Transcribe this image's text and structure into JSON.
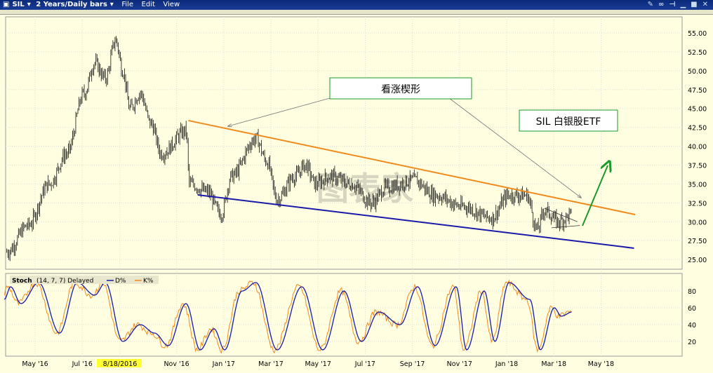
{
  "window": {
    "symbol": "SIL",
    "timeframe": "2 Years/Daily bars",
    "menus": [
      "File",
      "Edit",
      "View"
    ]
  },
  "colors": {
    "orange": "#f08a1c",
    "blue": "#1a1aaa",
    "green": "#1a9a2a",
    "bg": "#fffee0"
  },
  "chart_data": [
    {
      "type": "ohlc",
      "title": "SIL",
      "annotations": {
        "wedge_label": "看涨楔形",
        "ticker_label": "SIL  白银股ETF",
        "watermark": "图表家"
      },
      "x_unit": "months since Apr 1 2016",
      "xticks": [
        "May '16",
        "Jul '16",
        "8/18/2016",
        "Nov '16",
        "Jan '17",
        "Mar '17",
        "May '17",
        "Jul '17",
        "Sep '17",
        "Nov '17",
        "Jan '18",
        "Mar '18",
        "May '18"
      ],
      "xtick_pos": [
        1,
        3,
        4.6,
        7,
        9,
        11,
        13,
        15,
        17,
        19,
        21,
        23,
        25
      ],
      "ylim": [
        25,
        55
      ],
      "yticks": [
        "55.00",
        "52.50",
        "50.00",
        "47.50",
        "45.00",
        "42.50",
        "40.00",
        "37.50",
        "35.00",
        "32.50",
        "30.00",
        "27.50",
        "25.00"
      ],
      "price_path": [
        [
          -0.2,
          26
        ],
        [
          0.7,
          29.5
        ],
        [
          1.6,
          35
        ],
        [
          2.34,
          39
        ],
        [
          3.08,
          47
        ],
        [
          3.53,
          51
        ],
        [
          3.98,
          49
        ],
        [
          4.42,
          54
        ],
        [
          4.72,
          50
        ],
        [
          5.02,
          45
        ],
        [
          5.46,
          47
        ],
        [
          5.91,
          43
        ],
        [
          6.36,
          39
        ],
        [
          7.4,
          42
        ],
        [
          7.55,
          35
        ],
        [
          8.29,
          34
        ],
        [
          8.89,
          31
        ],
        [
          9.33,
          36
        ],
        [
          10.37,
          41
        ],
        [
          10.82,
          38
        ],
        [
          11.27,
          33
        ],
        [
          12.01,
          36
        ],
        [
          12.46,
          37.5
        ],
        [
          12.9,
          35
        ],
        [
          13.5,
          36
        ],
        [
          14.39,
          35
        ],
        [
          15.28,
          32.5
        ],
        [
          15.88,
          34.5
        ],
        [
          17.07,
          35.5
        ],
        [
          17.96,
          33.5
        ],
        [
          19.15,
          32
        ],
        [
          20.34,
          30.5
        ],
        [
          21.1,
          33.5
        ],
        [
          21.85,
          33.5
        ],
        [
          22.3,
          29
        ],
        [
          22.6,
          31.5
        ],
        [
          23.2,
          30
        ],
        [
          23.77,
          31
        ]
      ],
      "trendlines": [
        {
          "name": "resistance",
          "color": "#f08a1c",
          "points": [
            [
              7.5,
              43.4
            ],
            [
              26.45,
              30.95
            ]
          ]
        },
        {
          "name": "support",
          "color": "#1a1aaa",
          "points": [
            [
              7.9,
              33.55
            ],
            [
              26.4,
              26.5
            ]
          ]
        },
        {
          "name": "small-wedge-top",
          "color": "#333",
          "points": [
            [
              22.6,
              31.8
            ],
            [
              24,
              30
            ]
          ]
        },
        {
          "name": "small-wedge-bottom",
          "color": "#333",
          "points": [
            [
              22.9,
              29.2
            ],
            [
              24.1,
              29.5
            ]
          ]
        }
      ]
    },
    {
      "type": "line",
      "title": "Stoch",
      "params": "(14, 7, 7) Delayed",
      "legend": [
        "D%",
        "K%"
      ],
      "ylim": [
        0,
        100
      ],
      "yticks": [
        "80",
        "60",
        "40",
        "20"
      ],
      "D_path": [
        [
          -0.3,
          70
        ],
        [
          -0.04,
          85
        ],
        [
          0.4,
          65
        ],
        [
          1.15,
          90
        ],
        [
          2.04,
          30
        ],
        [
          2.79,
          90
        ],
        [
          3.53,
          75
        ],
        [
          3.98,
          90
        ],
        [
          4.72,
          20
        ],
        [
          5.46,
          40
        ],
        [
          6.06,
          30
        ],
        [
          6.65,
          15
        ],
        [
          7.4,
          65
        ],
        [
          8.0,
          10
        ],
        [
          8.59,
          35
        ],
        [
          9.04,
          10
        ],
        [
          9.78,
          80
        ],
        [
          10.37,
          90
        ],
        [
          11.27,
          10
        ],
        [
          12.31,
          85
        ],
        [
          13.2,
          10
        ],
        [
          14.1,
          80
        ],
        [
          14.84,
          20
        ],
        [
          15.58,
          55
        ],
        [
          16.48,
          40
        ],
        [
          17.22,
          85
        ],
        [
          17.96,
          15
        ],
        [
          18.86,
          85
        ],
        [
          19.3,
          10
        ],
        [
          20.05,
          80
        ],
        [
          20.5,
          20
        ],
        [
          21.1,
          90
        ],
        [
          21.98,
          70
        ],
        [
          22.43,
          10
        ],
        [
          23.02,
          60
        ],
        [
          23.32,
          50
        ],
        [
          23.77,
          55
        ]
      ]
    }
  ]
}
